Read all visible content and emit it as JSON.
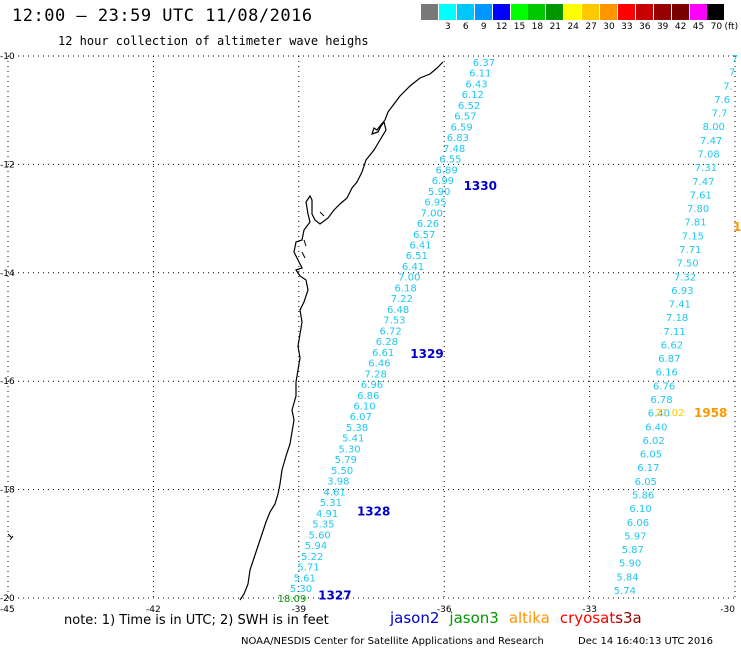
{
  "header": {
    "title": "12:00 – 23:59 UTC 11/08/2016",
    "subtitle": "12 hour collection of altimeter wave heighs"
  },
  "legend": {
    "unit": "(ft)",
    "bins": [
      {
        "label": "",
        "color": "#787878"
      },
      {
        "label": "3",
        "color": "#00ffff"
      },
      {
        "label": "6",
        "color": "#00c8ff"
      },
      {
        "label": "9",
        "color": "#0096ff"
      },
      {
        "label": "12",
        "color": "#0000ff"
      },
      {
        "label": "15",
        "color": "#00ff00"
      },
      {
        "label": "18",
        "color": "#00c800"
      },
      {
        "label": "21",
        "color": "#009600"
      },
      {
        "label": "24",
        "color": "#ffff00"
      },
      {
        "label": "27",
        "color": "#ffc800"
      },
      {
        "label": "30",
        "color": "#ff9600"
      },
      {
        "label": "33",
        "color": "#ff0000"
      },
      {
        "label": "36",
        "color": "#c80000"
      },
      {
        "label": "39",
        "color": "#960000"
      },
      {
        "label": "42",
        "color": "#780000"
      },
      {
        "label": "45",
        "color": "#ff00ff"
      },
      {
        "label": "70",
        "color": "#000000"
      }
    ]
  },
  "axes": {
    "lat_ticks": [
      -10,
      -12,
      -14,
      -16,
      -18,
      -20
    ],
    "lon_ticks": [
      -45,
      -42,
      -39,
      -36,
      -33,
      -30
    ],
    "lat_range": [
      -20,
      -10
    ],
    "lon_range": [
      -45,
      -30
    ],
    "grid": "dotted"
  },
  "tracks": {
    "jason2_descending": {
      "pass_labels": [
        {
          "text": "1330",
          "lat": -12.4,
          "lon": -35.6
        },
        {
          "text": "1329",
          "lat": -15.5,
          "lon": -36.7
        },
        {
          "text": "1328",
          "lat": -18.4,
          "lon": -37.8
        },
        {
          "text": "1327",
          "lat": -19.95,
          "lon": -38.6
        }
      ],
      "values": [
        "6.37",
        "6.11",
        "6.43",
        "6.12",
        "6.52",
        "6.57",
        "6.59",
        "6.83",
        "7.48",
        "6.55",
        "6.89",
        "6.99",
        "5.90",
        "6.95",
        "7.00",
        "6.26",
        "6.57",
        "6.41",
        "6.51",
        "6.41",
        "7.00",
        "6.18",
        "7.22",
        "6.48",
        "7.53",
        "6.72",
        "6.28",
        "6.61",
        "6.46",
        "7.28",
        "6.96",
        "6.86",
        "6.10",
        "6.07",
        "5.38",
        "5.41",
        "5.30",
        "5.79",
        "5.50",
        "3.98",
        "4.61",
        "5.31",
        "4.91",
        "5.35",
        "5.60",
        "5.94",
        "5.22",
        "5.71",
        "5.61",
        "5.30"
      ],
      "special": {
        "value": "18.09",
        "color": "#009600"
      }
    },
    "altika_ascending": {
      "pass_label": {
        "text": "1958",
        "color": "#ff9600"
      },
      "special": {
        "value": "21.02",
        "color": "#ffc800"
      },
      "values": [
        "7",
        "7",
        "7.",
        "7.6",
        "7.7",
        "8.00",
        "7.47",
        "7.08",
        "7.31",
        "7.47",
        "7.61",
        "7.80",
        "7.81",
        "7.15",
        "7.71",
        "7.50",
        "7.32",
        "6.93",
        "7.41",
        "7.18",
        "7.11",
        "6.62",
        "6.87",
        "6.16",
        "6.76",
        "6.78",
        "6.40",
        "6.40",
        "6.02",
        "6.05",
        "6.17",
        "6.05",
        "5.86",
        "6.10",
        "6.06",
        "5.97",
        "5.87",
        "5.90",
        "5.84",
        "5.74"
      ],
      "edge_label": {
        "text": "1",
        "color": "#ff9600"
      }
    }
  },
  "footer": {
    "note": "note:  1) Time is in UTC;  2) SWH is in feet",
    "satellites": [
      {
        "name": "jason2",
        "color": "#0000c8"
      },
      {
        "name": "jason3",
        "color": "#009600"
      },
      {
        "name": "altika",
        "color": "#ff9600"
      },
      {
        "name": "cryosat",
        "color": "#ff0000"
      },
      {
        "name": "s3a",
        "color": "#960000"
      }
    ],
    "credit": "NOAA/NESDIS Center for Satellite Applications and Research",
    "timestamp": "Dec 14 16:40:13 UTC 2016"
  }
}
